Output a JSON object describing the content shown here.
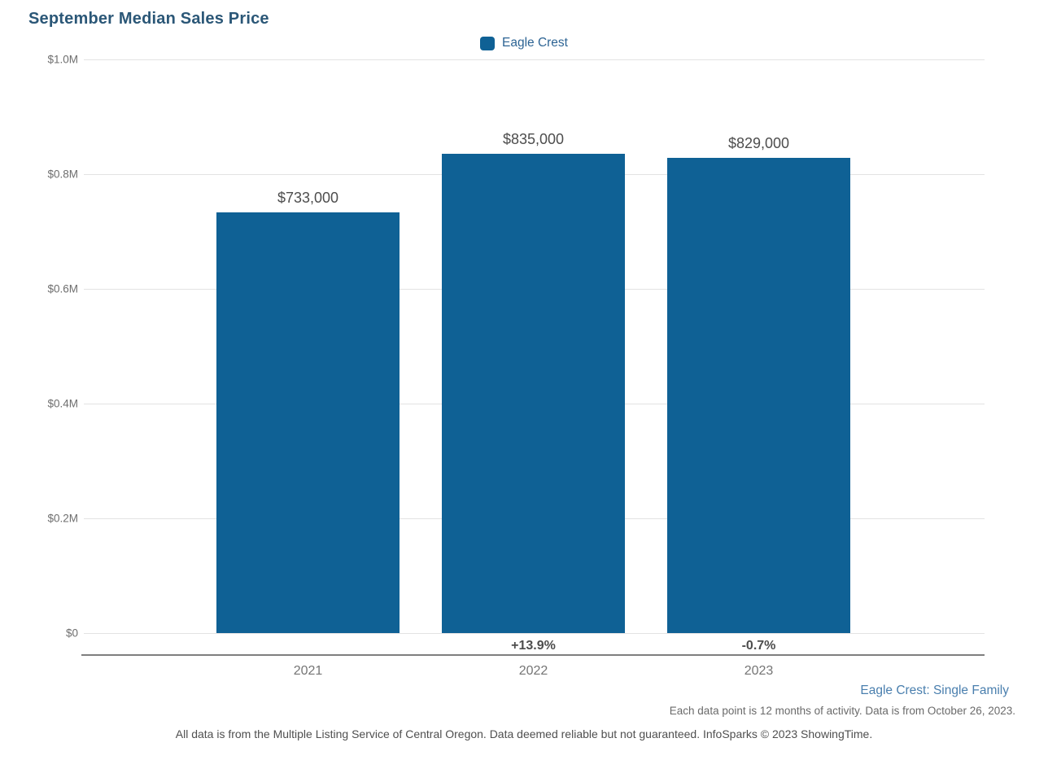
{
  "title": "September Median Sales Price",
  "legend": {
    "label": "Eagle Crest"
  },
  "chart_data": {
    "type": "bar",
    "title": "September Median Sales Price",
    "categories": [
      "2021",
      "2022",
      "2023"
    ],
    "series": [
      {
        "name": "Eagle Crest",
        "values": [
          733000,
          835000,
          829000
        ]
      }
    ],
    "value_labels": [
      "$733,000",
      "$835,000",
      "$829,000"
    ],
    "pct_change_labels": [
      "",
      "+13.9%",
      "-0.7%"
    ],
    "xlabel": "",
    "ylabel": "",
    "ylim": [
      0,
      1000000
    ],
    "yticks": [
      0,
      200000,
      400000,
      600000,
      800000,
      1000000
    ],
    "ytick_labels": [
      "$0",
      "$0.2M",
      "$0.4M",
      "$0.6M",
      "$0.8M",
      "$1.0M"
    ],
    "grid": true,
    "legend_position": "top-center",
    "colors": {
      "bar": "#0f6195",
      "title": "#2b5777",
      "legend_text": "#2d6494",
      "gridline": "#e3e3e3",
      "axis_line": "#7f7f7f",
      "tick_text": "#6e6e6e",
      "value_text": "#4d4d4d"
    }
  },
  "footnotes": {
    "segment": "Eagle Crest: Single Family",
    "data_note": "Each data point is 12 months of activity. Data is from October 26, 2023.",
    "disclaimer": "All data is from the Multiple Listing Service of Central Oregon. Data deemed reliable but not guaranteed. InfoSparks © 2023 ShowingTime."
  }
}
